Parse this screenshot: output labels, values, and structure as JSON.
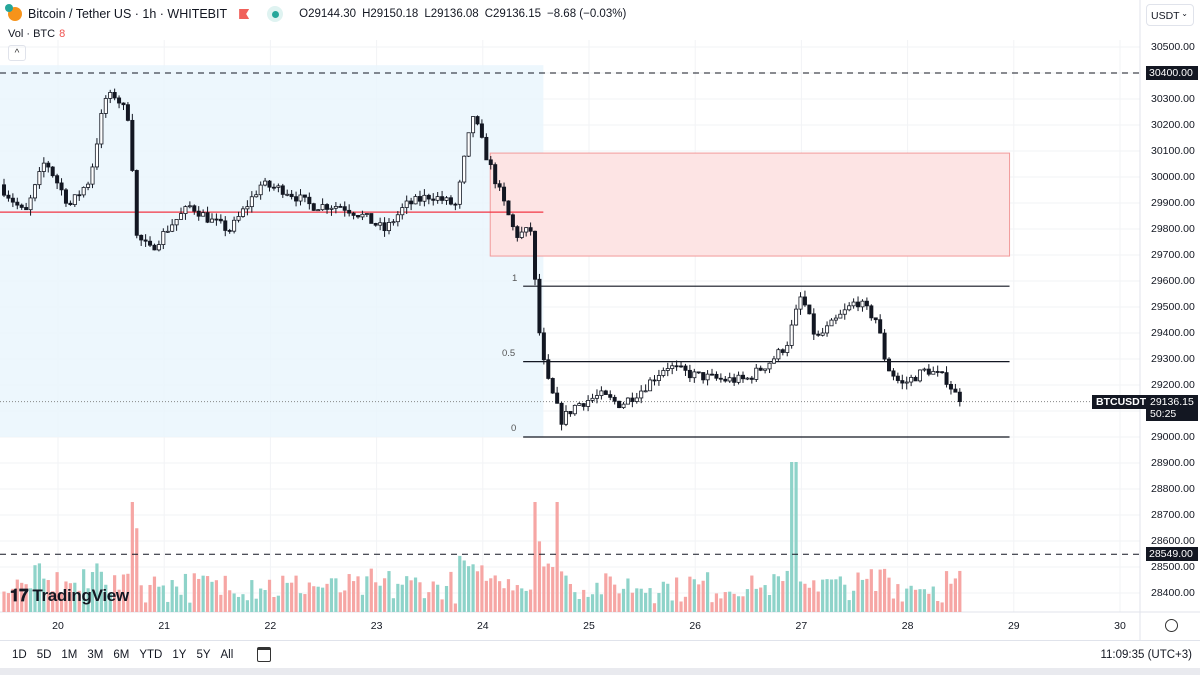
{
  "header": {
    "symbol": "Bitcoin / Tether US · 1h · WHITEBIT",
    "open": "O29144.30",
    "high": "H29150.18",
    "low": "L29136.08",
    "close": "C29136.15",
    "change": "−8.68 (−0.03%)",
    "volume_label": "Vol · BTC",
    "volume_value": "8",
    "collapse_icon": "^"
  },
  "currency_select": "USDT",
  "price_axis": {
    "labels": [
      "30500.00",
      "30300.00",
      "30200.00",
      "30100.00",
      "30000.00",
      "29900.00",
      "29800.00",
      "29700.00",
      "29600.00",
      "29500.00",
      "29400.00",
      "29300.00",
      "29200.00",
      "29000.00",
      "28900.00",
      "28800.00",
      "28700.00",
      "28600.00",
      "28500.00",
      "28400.00"
    ],
    "level_high": "30400.00",
    "level_low": "28549.00",
    "symbol_tag": "BTCUSDT",
    "last_price": "29136.15",
    "countdown": "50:25"
  },
  "time_axis": [
    "20",
    "21",
    "22",
    "23",
    "24",
    "25",
    "26",
    "27",
    "28",
    "29",
    "30"
  ],
  "fib_labels": {
    "one": "1",
    "half": "0.5",
    "zero": "0"
  },
  "logo": "TradingView",
  "ranges": [
    "1D",
    "5D",
    "1M",
    "3M",
    "6M",
    "YTD",
    "1Y",
    "5Y",
    "All"
  ],
  "clock": "11:09:35 (UTC+3)",
  "colors": {
    "up_volume": "#8ed3c9",
    "down_volume": "#f6a6a4",
    "candle": "#131722",
    "range_box": "#e9f5fc",
    "supply_zone": "#fde4e4",
    "supply_zone_border": "#f19a9a",
    "mid_line": "#f23645"
  },
  "chart_data": {
    "type": "candlestick",
    "xlabel": "",
    "ylabel": "",
    "xlim": [
      19.45,
      30.5
    ],
    "ylim": [
      28350,
      30560
    ],
    "close_path": {
      "x": [
        19.45,
        19.69,
        19.88,
        20.11,
        20.3,
        20.44,
        20.54,
        20.68,
        20.73,
        20.87,
        21.06,
        21.25,
        21.43,
        21.62,
        21.91,
        22.14,
        22.38,
        22.66,
        22.85,
        23.08,
        23.27,
        23.51,
        23.75,
        23.84,
        23.91,
        24.03,
        24.17,
        24.31,
        24.45,
        24.53,
        24.59,
        24.74,
        24.88,
        25.11,
        25.3,
        25.49,
        25.73,
        25.96,
        26.25,
        26.48,
        26.72,
        26.86,
        27.0,
        27.14,
        27.33,
        27.52,
        27.71,
        27.8,
        27.94,
        28.18,
        28.37,
        28.49
      ],
      "y": [
        29970,
        29855,
        30065,
        29890,
        29990,
        30300,
        30315,
        30220,
        29775,
        29720,
        29815,
        29890,
        29835,
        29795,
        29970,
        29950,
        29890,
        29890,
        29855,
        29795,
        29890,
        29930,
        29890,
        30100,
        30240,
        30085,
        29930,
        29775,
        29795,
        29410,
        29240,
        29065,
        29125,
        29160,
        29125,
        29180,
        29275,
        29240,
        29220,
        29220,
        29295,
        29355,
        29545,
        29375,
        29450,
        29525,
        29450,
        29275,
        29200,
        29260,
        29220,
        29136.15
      ]
    },
    "volume_peaks": [
      {
        "x": 20.7,
        "level": "high"
      },
      {
        "x": 24.5,
        "level": "high"
      },
      {
        "x": 24.7,
        "level": "high"
      },
      {
        "x": 26.92,
        "level": "highest"
      }
    ],
    "horizontal_levels": [
      30400,
      28549
    ],
    "last_price": 29136.15,
    "range_box": {
      "x": [
        19.45,
        24.57
      ],
      "y": [
        29000,
        30430
      ]
    },
    "supply_zone": {
      "x": [
        24.07,
        28.96
      ],
      "y": [
        29696,
        30092
      ]
    },
    "range_midline": {
      "x": [
        19.45,
        24.57
      ],
      "y": 29865
    },
    "fibonacci": {
      "x": [
        24.38,
        28.96
      ],
      "levels": [
        {
          "level": 1,
          "price": 29580
        },
        {
          "level": 0.5,
          "price": 29290
        },
        {
          "level": 0,
          "price": 29000
        }
      ]
    }
  }
}
